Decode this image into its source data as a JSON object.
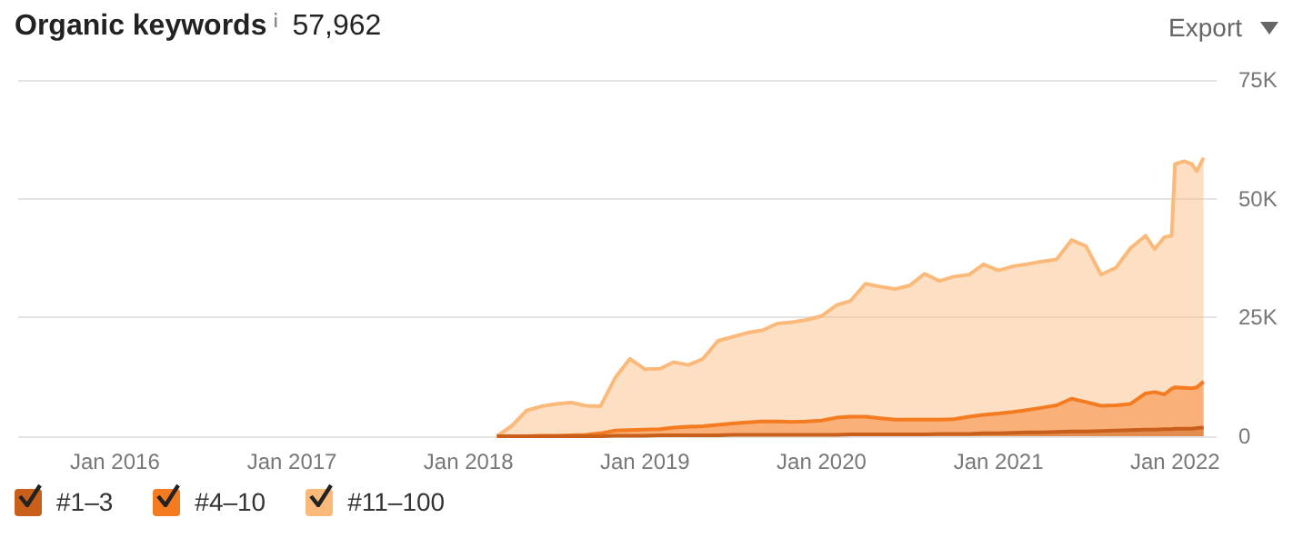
{
  "chart_data": {
    "type": "area",
    "title": "Organic keywords",
    "subtitle": "57,962",
    "annotations": [
      "Export"
    ],
    "stacked": true,
    "grid": "y",
    "legend": "bottom left",
    "marker": "none",
    "x": [
      "2018-03-01",
      "2018-04-01",
      "2018-05-01",
      "2018-06-01",
      "2018-07-01",
      "2018-08-01",
      "2018-09-01",
      "2018-10-01",
      "2018-11-01",
      "2018-12-01",
      "2019-01-01",
      "2019-02-01",
      "2019-03-01",
      "2019-04-01",
      "2019-05-01",
      "2019-06-01",
      "2019-07-01",
      "2019-08-01",
      "2019-09-01",
      "2019-10-01",
      "2019-11-01",
      "2019-12-01",
      "2020-01-01",
      "2020-02-01",
      "2020-03-01",
      "2020-04-01",
      "2020-05-01",
      "2020-06-01",
      "2020-07-01",
      "2020-08-01",
      "2020-09-01",
      "2020-10-01",
      "2020-11-01",
      "2020-12-01",
      "2021-01-01",
      "2021-02-01",
      "2021-03-01",
      "2021-04-01",
      "2021-05-01",
      "2021-06-01",
      "2021-07-01",
      "2021-08-01",
      "2021-09-01",
      "2021-10-01",
      "2021-11-01",
      "2021-11-20",
      "2021-12-10",
      "2021-12-25",
      "2022-01-01",
      "2022-01-20",
      "2022-02-05",
      "2022-02-15",
      "2022-03-01"
    ],
    "series": [
      {
        "name": "#1–3",
        "color": "#c8601c",
        "values": [
          0,
          0,
          0,
          0,
          0,
          0,
          0,
          0,
          100,
          100,
          100,
          200,
          200,
          200,
          200,
          200,
          300,
          300,
          300,
          300,
          300,
          300,
          300,
          300,
          400,
          400,
          400,
          400,
          400,
          400,
          500,
          500,
          500,
          600,
          600,
          700,
          800,
          800,
          900,
          1000,
          1000,
          1100,
          1200,
          1300,
          1400,
          1400,
          1500,
          1500,
          1600,
          1600,
          1600,
          1700,
          1800
        ]
      },
      {
        "name": "#4–10",
        "color": "#f47b20",
        "values": [
          0,
          0,
          0,
          100,
          100,
          200,
          300,
          600,
          1100,
          1200,
          1300,
          1300,
          1600,
          1800,
          1900,
          2200,
          2400,
          2600,
          2800,
          2800,
          2700,
          2800,
          3000,
          3600,
          3700,
          3700,
          3400,
          3100,
          3100,
          3100,
          3000,
          3100,
          3600,
          3900,
          4200,
          4400,
          4700,
          5200,
          5600,
          6900,
          6200,
          5300,
          5300,
          5500,
          7600,
          7900,
          7300,
          8500,
          8700,
          8600,
          8500,
          8600,
          9700
        ]
      },
      {
        "name": "#11–100",
        "color": "#fbb97a",
        "values": [
          0,
          2200,
          5400,
          6200,
          6700,
          6900,
          6100,
          5700,
          11200,
          15000,
          12700,
          12700,
          13800,
          13000,
          14200,
          17700,
          18200,
          18900,
          19200,
          20600,
          21000,
          21400,
          22000,
          23700,
          24400,
          28000,
          27700,
          27500,
          28200,
          30700,
          29200,
          30000,
          29900,
          31700,
          30100,
          30700,
          30700,
          30800,
          30700,
          33400,
          32800,
          27600,
          29000,
          32800,
          33200,
          30100,
          33100,
          32200,
          47000,
          47700,
          47200,
          45500,
          47100
        ]
      }
    ],
    "xlim": [
      "2015-06-15",
      "2022-03-28"
    ],
    "xticks": [
      {
        "value": "2016-01-01",
        "label": "Jan 2016"
      },
      {
        "value": "2017-01-01",
        "label": "Jan 2017"
      },
      {
        "value": "2018-01-01",
        "label": "Jan 2018"
      },
      {
        "value": "2019-01-01",
        "label": "Jan 2019"
      },
      {
        "value": "2020-01-01",
        "label": "Jan 2020"
      },
      {
        "value": "2021-01-01",
        "label": "Jan 2021"
      },
      {
        "value": "2022-01-01",
        "label": "Jan 2022"
      }
    ],
    "ylim": [
      0,
      75000
    ],
    "yticks": [
      0,
      {
        "value": 25000,
        "label": "25K"
      },
      {
        "value": 50000,
        "label": "50K"
      },
      {
        "value": 75000,
        "label": "75K"
      }
    ]
  }
}
